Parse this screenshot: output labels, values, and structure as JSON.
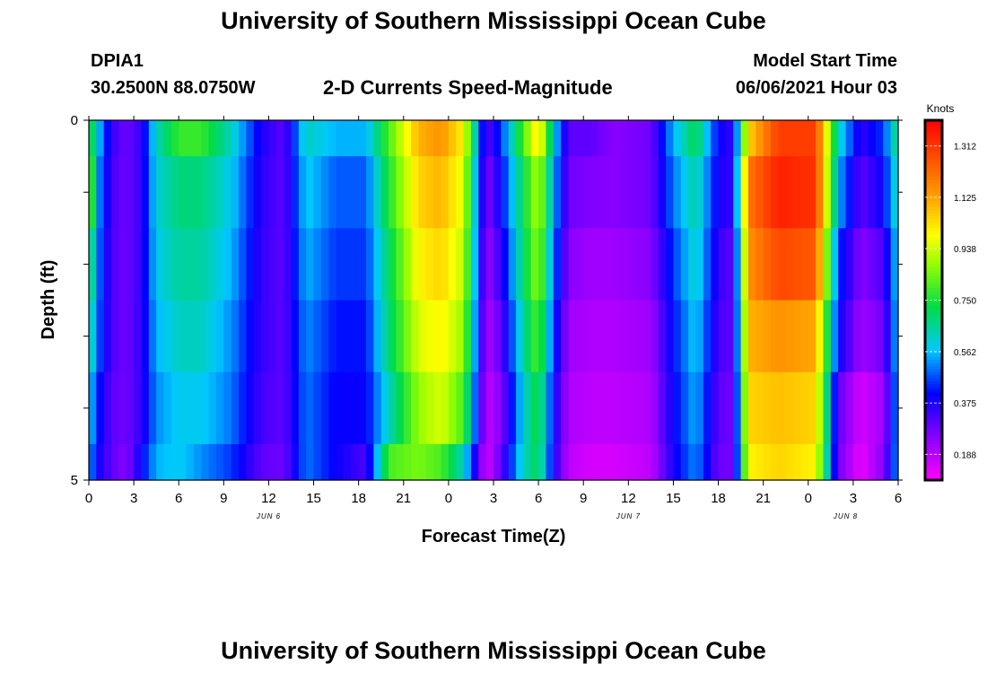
{
  "page": {
    "title": "University of Southern Mississippi Ocean Cube",
    "footer_title": "University of Southern Mississippi Ocean Cube",
    "station_id": "DPIA1",
    "station_coords": "30.2500N  88.0750W",
    "plot_title": "2-D Currents Speed-Magnitude",
    "model_start_label": "Model Start Time",
    "model_start_value": "06/06/2021 Hour 03"
  },
  "chart_data": {
    "type": "heatmap",
    "title": "2-D Currents Speed-Magnitude",
    "xlabel": "Forecast Time(Z)",
    "ylabel": "Depth (ft)",
    "x_tick_labels": [
      "0",
      "3",
      "6",
      "9",
      "12",
      "15",
      "18",
      "21",
      "0",
      "3",
      "6",
      "9",
      "12",
      "15",
      "18",
      "21",
      "0",
      "3",
      "6"
    ],
    "x_range_hours": [
      0,
      54
    ],
    "y_tick_labels": [
      "0",
      "5"
    ],
    "y_range_ft": [
      0,
      5
    ],
    "day_labels": [
      "JUN 6",
      "JUN 7",
      "JUN 8"
    ],
    "day_label_hours": [
      12,
      36,
      50.5
    ],
    "colorbar": {
      "unit": "Knots",
      "min": 0.094,
      "max": 1.406,
      "tick_values": [
        1.312,
        1.125,
        0.938,
        0.75,
        0.562,
        0.375,
        0.188
      ],
      "tick_labels": [
        "1.312",
        "1.125",
        "0.938",
        "0.750",
        "0.562",
        "0.375",
        "0.188"
      ]
    },
    "depth_levels": 5,
    "time_step_hours": 0.5,
    "anchor_hours": [
      0,
      0.5,
      1.5,
      2.5,
      3.5,
      4.5,
      6,
      7.5,
      9.5,
      11.5,
      13,
      14.5,
      16.5,
      18.5,
      20,
      22,
      23.5,
      25,
      26.5,
      27.5,
      29,
      30,
      31,
      32,
      33.5,
      35,
      37.5,
      39,
      40.5,
      42,
      43,
      44,
      46,
      48.5,
      50,
      51.5,
      53,
      54
    ],
    "speed_knots_by_layer": [
      [
        0.8,
        0.6,
        0.35,
        0.28,
        0.35,
        0.62,
        0.78,
        0.78,
        0.62,
        0.38,
        0.3,
        0.62,
        0.55,
        0.55,
        0.8,
        1.1,
        1.15,
        1.0,
        0.3,
        0.45,
        0.8,
        1.05,
        0.6,
        0.3,
        0.3,
        0.25,
        0.28,
        0.55,
        0.72,
        0.4,
        0.35,
        1.05,
        1.3,
        1.3,
        0.62,
        0.35,
        0.45,
        0.7
      ],
      [
        0.95,
        0.55,
        0.33,
        0.28,
        0.35,
        0.6,
        0.68,
        0.68,
        0.58,
        0.36,
        0.3,
        0.58,
        0.48,
        0.48,
        0.75,
        1.05,
        1.1,
        0.95,
        0.25,
        0.4,
        0.72,
        0.92,
        0.55,
        0.28,
        0.26,
        0.25,
        0.28,
        0.5,
        0.65,
        0.38,
        0.35,
        1.2,
        1.35,
        1.32,
        0.55,
        0.3,
        0.4,
        0.65
      ],
      [
        0.78,
        0.52,
        0.32,
        0.28,
        0.35,
        0.58,
        0.65,
        0.65,
        0.55,
        0.35,
        0.3,
        0.55,
        0.45,
        0.45,
        0.7,
        1.0,
        1.05,
        0.92,
        0.22,
        0.35,
        0.7,
        0.88,
        0.5,
        0.25,
        0.22,
        0.22,
        0.25,
        0.45,
        0.62,
        0.35,
        0.3,
        1.15,
        1.28,
        1.25,
        0.45,
        0.25,
        0.32,
        0.6
      ],
      [
        0.7,
        0.5,
        0.32,
        0.28,
        0.35,
        0.55,
        0.62,
        0.62,
        0.52,
        0.35,
        0.3,
        0.52,
        0.42,
        0.42,
        0.68,
        0.95,
        1.0,
        0.88,
        0.2,
        0.3,
        0.65,
        0.82,
        0.45,
        0.22,
        0.2,
        0.2,
        0.22,
        0.42,
        0.58,
        0.33,
        0.3,
        1.1,
        1.15,
        1.12,
        0.4,
        0.22,
        0.28,
        0.58
      ],
      [
        0.6,
        0.45,
        0.3,
        0.28,
        0.35,
        0.52,
        0.58,
        0.58,
        0.5,
        0.33,
        0.3,
        0.5,
        0.4,
        0.4,
        0.62,
        0.88,
        0.95,
        0.8,
        0.18,
        0.25,
        0.6,
        0.75,
        0.4,
        0.2,
        0.18,
        0.18,
        0.2,
        0.4,
        0.55,
        0.3,
        0.28,
        1.05,
        1.08,
        1.05,
        0.3,
        0.15,
        0.22,
        0.55
      ],
      [
        0.55,
        0.4,
        0.3,
        0.25,
        0.4,
        0.55,
        0.58,
        0.52,
        0.45,
        0.3,
        0.28,
        0.5,
        0.4,
        0.32,
        0.8,
        0.85,
        0.8,
        0.62,
        0.15,
        0.3,
        0.62,
        0.72,
        0.38,
        0.18,
        0.15,
        0.15,
        0.18,
        0.38,
        0.52,
        0.28,
        0.28,
        1.0,
        1.05,
        1.0,
        0.28,
        0.12,
        0.25,
        0.55
      ]
    ]
  }
}
